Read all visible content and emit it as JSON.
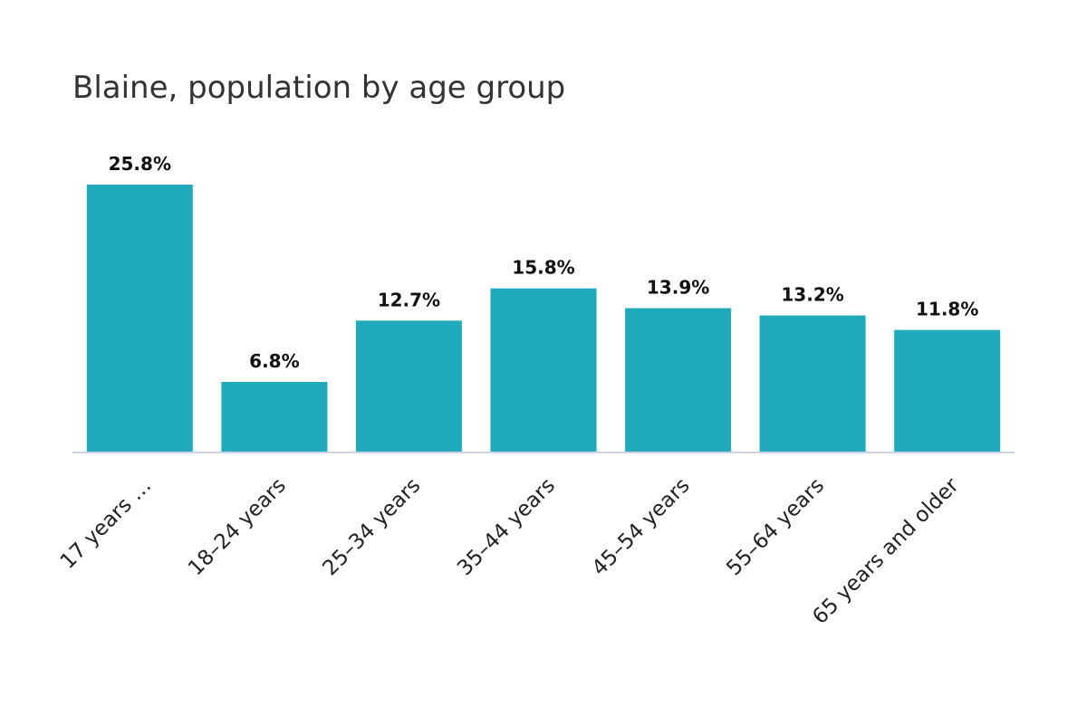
{
  "chart_data": {
    "type": "bar",
    "title": "Blaine, population by age group",
    "xlabel": "",
    "ylabel": "",
    "categories": [
      "17 years …",
      "18–24 years",
      "25–34 years",
      "35–44 years",
      "45–54 years",
      "55–64 years",
      "65 years and older"
    ],
    "values": [
      25.8,
      6.8,
      12.7,
      15.8,
      13.9,
      13.2,
      11.8
    ],
    "value_labels": [
      "25.8%",
      "6.8%",
      "12.7%",
      "15.8%",
      "13.9%",
      "13.2%",
      "11.8%"
    ],
    "ylim": [
      0,
      25.8
    ],
    "grid": false,
    "legend": "none",
    "colors": {
      "bar": "#20aabb",
      "baseline": "#cfd3e6"
    }
  }
}
